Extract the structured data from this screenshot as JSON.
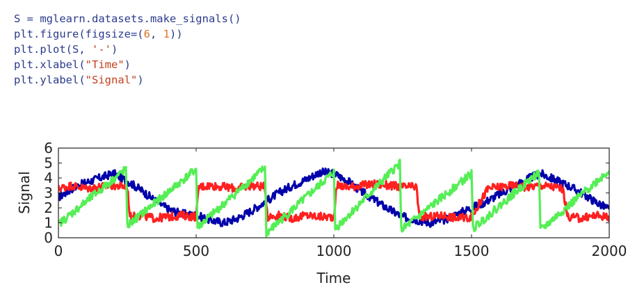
{
  "code": {
    "lines": [
      "S = mglearn.datasets.make_signals()",
      "plt.figure(figsize=(6, 1))",
      "plt.plot(S, '-')",
      "plt.xlabel(\"Time\")",
      "plt.ylabel(\"Signal\")"
    ]
  },
  "chart_data": {
    "type": "line",
    "xlabel": "Time",
    "ylabel": "Signal",
    "xlim": [
      0,
      2000
    ],
    "ylim": [
      0,
      6
    ],
    "xticks": [
      0,
      500,
      1000,
      1500,
      2000
    ],
    "yticks": [
      0,
      1,
      2,
      3,
      4,
      5,
      6
    ],
    "grid": false,
    "series": [
      {
        "color": "#0000aa",
        "x": [
          0,
          50,
          100,
          150,
          200,
          250,
          300,
          350,
          400,
          450,
          500,
          550,
          600,
          650,
          700,
          750,
          800,
          850,
          900,
          950,
          1000,
          1050,
          1100,
          1150,
          1200,
          1250,
          1300,
          1350,
          1400,
          1450,
          1500,
          1550,
          1600,
          1650,
          1700,
          1750,
          1800,
          1850,
          1900,
          1950,
          2000
        ],
        "values": [
          2.7,
          3.3,
          3.7,
          4.0,
          4.3,
          3.8,
          3.2,
          2.5,
          1.9,
          1.6,
          1.5,
          1.2,
          1.0,
          1.3,
          1.8,
          2.4,
          3.0,
          3.5,
          3.9,
          4.4,
          4.3,
          3.8,
          3.1,
          2.5,
          1.9,
          1.4,
          1.2,
          1.0,
          1.2,
          1.6,
          2.0,
          2.4,
          2.9,
          3.4,
          3.9,
          4.3,
          3.9,
          3.5,
          3.0,
          2.4,
          1.9
        ]
      },
      {
        "color": "#ff2020",
        "x": [
          0,
          50,
          100,
          150,
          200,
          250,
          260,
          300,
          350,
          400,
          450,
          500,
          510,
          550,
          600,
          650,
          700,
          750,
          760,
          800,
          850,
          900,
          950,
          1000,
          1010,
          1050,
          1100,
          1150,
          1200,
          1250,
          1300,
          1310,
          1350,
          1400,
          1450,
          1500,
          1560,
          1600,
          1650,
          1700,
          1750,
          1800,
          1830,
          1850,
          1900,
          1950,
          2000
        ],
        "values": [
          3.3,
          3.5,
          3.3,
          3.4,
          3.5,
          3.4,
          1.4,
          1.5,
          1.3,
          1.4,
          1.5,
          1.4,
          3.4,
          3.5,
          3.4,
          3.3,
          3.5,
          3.4,
          1.4,
          1.5,
          1.3,
          1.5,
          1.4,
          1.4,
          3.5,
          3.4,
          3.5,
          3.6,
          3.5,
          3.4,
          3.4,
          1.4,
          1.4,
          1.5,
          1.3,
          1.4,
          3.3,
          3.4,
          3.5,
          3.4,
          3.5,
          3.4,
          3.3,
          1.4,
          1.3,
          1.5,
          1.4
        ]
      },
      {
        "color": "#55ee55",
        "x": [
          0,
          245,
          250,
          500,
          505,
          750,
          755,
          1000,
          1005,
          1240,
          1245,
          1500,
          1505,
          1745,
          1750,
          2000
        ],
        "values": [
          0.9,
          4.6,
          0.8,
          4.6,
          0.7,
          4.7,
          0.3,
          4.4,
          0.6,
          5.0,
          0.5,
          4.3,
          0.6,
          4.4,
          0.5,
          4.5
        ]
      }
    ]
  }
}
